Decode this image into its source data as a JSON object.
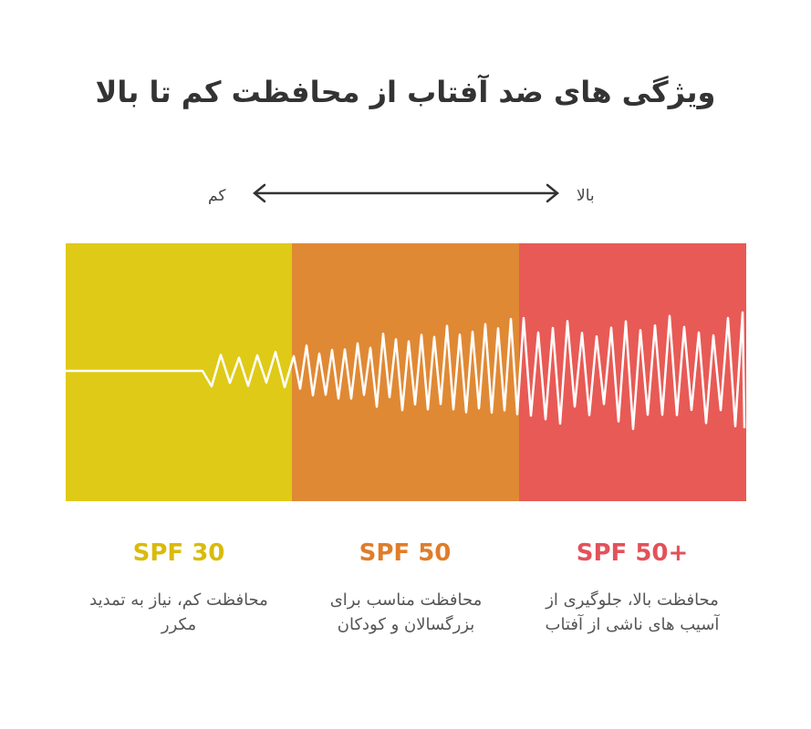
{
  "header": {
    "title": "ویژگی های ضد آفتاب از محافظت کم تا بالا"
  },
  "scale": {
    "low": "کم",
    "high": "بالا"
  },
  "panels": [
    {
      "label": "SPF 30",
      "description": "محافظت کم، نیاز به تمدید مکرر"
    },
    {
      "label": "SPF 50",
      "description": "محافظت مناسب برای بزرگسالان و کودکان"
    },
    {
      "label": "SPF 50+",
      "description": "محافظت بالا، جلوگیری از آسیب های ناشی از آفتاب"
    }
  ]
}
